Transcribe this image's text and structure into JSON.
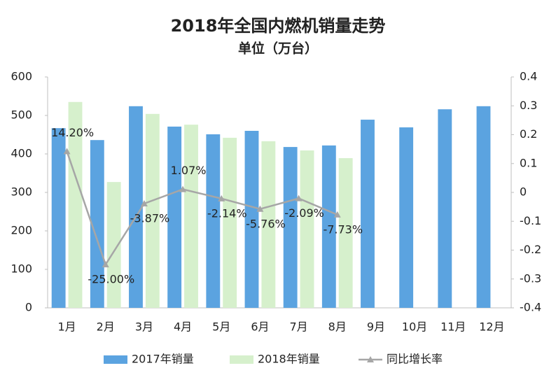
{
  "chart_data": {
    "type": "bar_line",
    "title": "2018年全国内燃机销量走势",
    "subtitle": "单位（万台）",
    "categories": [
      "1月",
      "2月",
      "3月",
      "4月",
      "5月",
      "6月",
      "7月",
      "8月",
      "9月",
      "10月",
      "11月",
      "12月"
    ],
    "series": [
      {
        "name": "2017年销量",
        "color": "#5ba3e0",
        "values": [
          467,
          436,
          524,
          471,
          451,
          460,
          418,
          422,
          489,
          469,
          516,
          524
        ]
      },
      {
        "name": "2018年销量",
        "color": "#d6f0cc",
        "values": [
          535,
          327,
          504,
          476,
          442,
          433,
          409,
          389,
          null,
          null,
          null,
          null
        ]
      },
      {
        "name": "同比增长率",
        "color": "#a6a6a6",
        "axis": "y2",
        "values": [
          0.142,
          -0.25,
          -0.0387,
          0.0107,
          -0.0214,
          -0.0576,
          -0.0209,
          -0.0773,
          null,
          null,
          null,
          null
        ],
        "value_labels": [
          "14.20%",
          "-25.00%",
          "-3.87%",
          "1.07%",
          "-2.14%",
          "-5.76%",
          "-2.09%",
          "-7.73%",
          null,
          null,
          null,
          null
        ]
      }
    ],
    "ylim": [
      0,
      600
    ],
    "yticks": [
      0,
      100,
      200,
      300,
      400,
      500,
      600
    ],
    "y2lim": [
      -0.4,
      0.4
    ],
    "y2ticks": [
      -0.4,
      -0.3,
      -0.2,
      -0.1,
      0,
      0.1,
      0.2,
      0.3,
      0.4
    ],
    "legend": "bottom"
  }
}
